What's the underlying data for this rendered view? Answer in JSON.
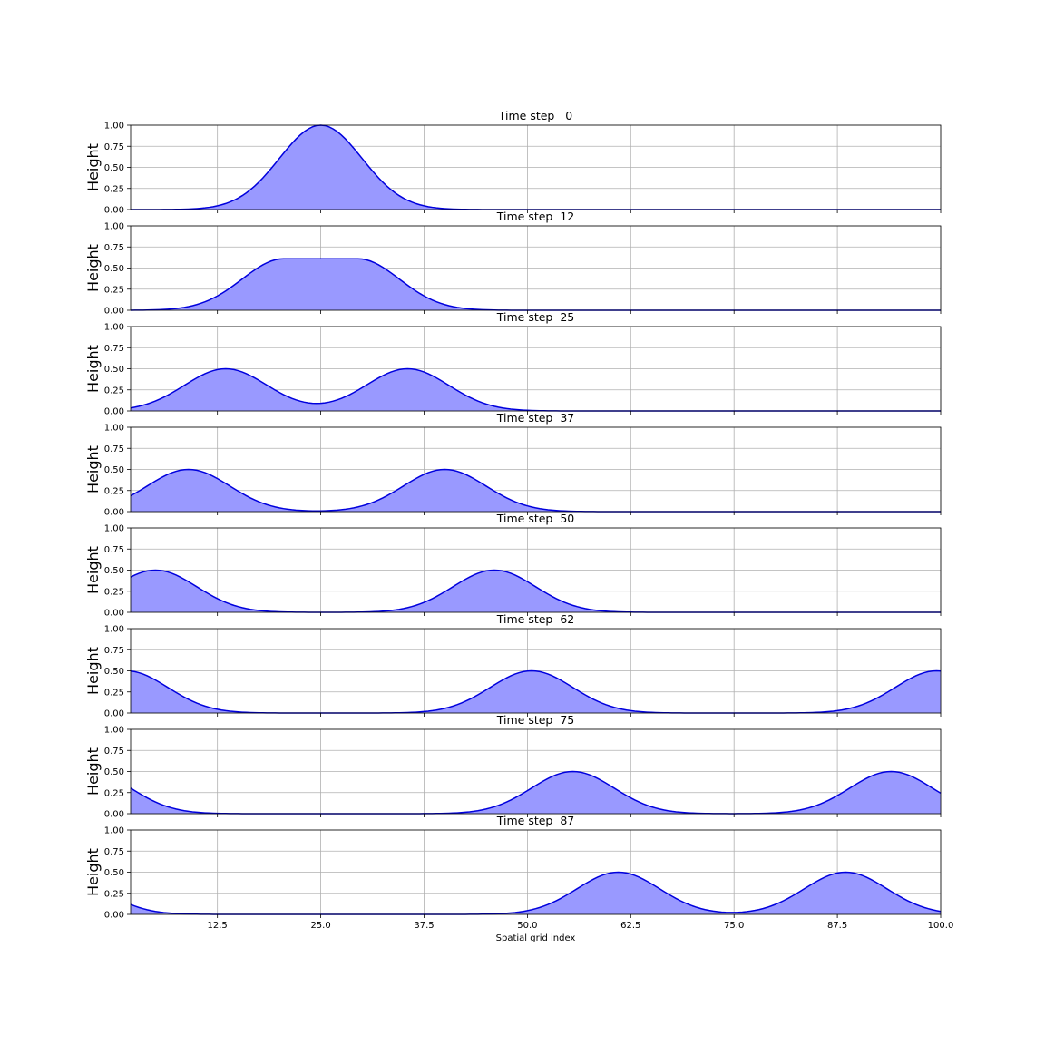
{
  "chart_data": {
    "type": "area",
    "xlabel": "Spatial grid index",
    "ylabel": "Height",
    "xlim": [
      2,
      100
    ],
    "ylim": [
      0,
      1
    ],
    "x_ticks": [
      "12.5",
      "25.0",
      "37.5",
      "50.0",
      "62.5",
      "75.0",
      "87.5",
      "100.0"
    ],
    "y_ticks": [
      "0.00",
      "0.25",
      "0.50",
      "0.75",
      "1.00"
    ],
    "grid": true,
    "colors": {
      "line": "#0000dd",
      "fill": "#9999ff",
      "grid": "#b0b0b0"
    },
    "panels": [
      {
        "title": "Time step   0",
        "peaks": [
          {
            "center": 25.0,
            "amplitude": 1.0,
            "width": 5.0,
            "flat": 0
          }
        ]
      },
      {
        "title": "Time step  12",
        "peaks": [
          {
            "center": 25.0,
            "amplitude": 0.61,
            "width": 5.0,
            "flat": 4.5
          }
        ]
      },
      {
        "title": "Time step  25",
        "peaks": [
          {
            "center": 13.5,
            "amplitude": 0.5,
            "width": 5.0,
            "flat": 0
          },
          {
            "center": 35.5,
            "amplitude": 0.5,
            "width": 5.0,
            "flat": 0
          }
        ]
      },
      {
        "title": "Time step  37",
        "peaks": [
          {
            "center": 9.0,
            "amplitude": 0.5,
            "width": 5.0,
            "flat": 0
          },
          {
            "center": 40.0,
            "amplitude": 0.5,
            "width": 5.0,
            "flat": 0
          }
        ]
      },
      {
        "title": "Time step  50",
        "peaks": [
          {
            "center": 5.0,
            "amplitude": 0.5,
            "width": 5.0,
            "flat": 0
          },
          {
            "center": 46.0,
            "amplitude": 0.5,
            "width": 5.0,
            "flat": 0
          }
        ]
      },
      {
        "title": "Time step  62",
        "peaks": [
          {
            "center": 1.5,
            "amplitude": 0.5,
            "width": 5.0,
            "flat": 0
          },
          {
            "center": 50.5,
            "amplitude": 0.5,
            "width": 5.0,
            "flat": 0
          },
          {
            "center": 99.5,
            "amplitude": 0.5,
            "width": 5.0,
            "flat": 0
          }
        ]
      },
      {
        "title": "Time step  75",
        "peaks": [
          {
            "center": -3.0,
            "amplitude": 0.5,
            "width": 5.0,
            "flat": 0
          },
          {
            "center": 55.5,
            "amplitude": 0.5,
            "width": 5.0,
            "flat": 0
          },
          {
            "center": 94.0,
            "amplitude": 0.5,
            "width": 5.0,
            "flat": 0
          }
        ]
      },
      {
        "title": "Time step  87",
        "peaks": [
          {
            "center": -6.5,
            "amplitude": 0.5,
            "width": 5.0,
            "flat": 0
          },
          {
            "center": 61.0,
            "amplitude": 0.5,
            "width": 5.0,
            "flat": 0
          },
          {
            "center": 88.5,
            "amplitude": 0.5,
            "width": 5.0,
            "flat": 0
          }
        ]
      }
    ]
  }
}
